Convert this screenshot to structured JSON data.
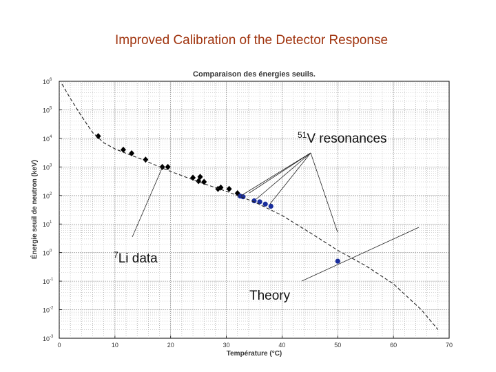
{
  "slide": {
    "title": "Improved Calibration of the Detector Response"
  },
  "chart_data": {
    "type": "scatter",
    "title": "Comparaison des énergies seuils.",
    "xlabel": "Température (°C)",
    "ylabel": "Énergie seuil de neutron (keV)",
    "xlim": [
      0,
      70
    ],
    "ylim_log10": [
      -3,
      6
    ],
    "y_scale": "log",
    "grid": true,
    "x_ticks": [
      0,
      10,
      20,
      30,
      40,
      50,
      60,
      70
    ],
    "y_ticks": [
      {
        "base": "10",
        "exp": "6"
      },
      {
        "base": "10",
        "exp": "5"
      },
      {
        "base": "10",
        "exp": "4"
      },
      {
        "base": "10",
        "exp": "3"
      },
      {
        "base": "10",
        "exp": "2"
      },
      {
        "base": "10",
        "exp": "1"
      },
      {
        "base": "10",
        "exp": "0"
      },
      {
        "base": "10",
        "exp": "-1"
      },
      {
        "base": "10",
        "exp": "-2"
      },
      {
        "base": "10",
        "exp": "-3"
      }
    ],
    "series": [
      {
        "color": "#000000",
        "marker": "diamond",
        "points": [
          [
            7,
            12000
          ],
          [
            11.5,
            4000
          ],
          [
            13,
            3000
          ],
          [
            15.5,
            1800
          ],
          [
            18.5,
            1000
          ],
          [
            19.5,
            1000
          ],
          [
            24,
            420
          ],
          [
            25,
            320
          ],
          [
            25.3,
            450
          ],
          [
            26,
            300
          ],
          [
            28.5,
            170
          ],
          [
            29,
            190
          ],
          [
            30.5,
            170
          ],
          [
            32,
            120
          ]
        ]
      },
      {
        "color": "#1a2e9c",
        "marker": "circle",
        "points": [
          [
            32.5,
            95
          ],
          [
            33,
            90
          ],
          [
            35,
            65
          ],
          [
            36,
            60
          ],
          [
            37,
            50
          ],
          [
            38,
            42
          ],
          [
            50,
            0.5
          ]
        ]
      },
      {
        "line_style": "dashed",
        "color": "#222222",
        "points": [
          [
            0.5,
            800000
          ],
          [
            2,
            250000
          ],
          [
            4,
            60000
          ],
          [
            6,
            16000
          ],
          [
            8,
            7000
          ],
          [
            10,
            4300
          ],
          [
            12,
            3000
          ],
          [
            15,
            1800
          ],
          [
            18,
            1000
          ],
          [
            20,
            700
          ],
          [
            25,
            300
          ],
          [
            30,
            140
          ],
          [
            35,
            60
          ],
          [
            40,
            20
          ],
          [
            45,
            5
          ],
          [
            50,
            1.2
          ],
          [
            55,
            0.35
          ],
          [
            60,
            0.08
          ],
          [
            65,
            0.01
          ],
          [
            68,
            0.002
          ]
        ]
      }
    ],
    "annotations": [
      {
        "text_pre": "51",
        "text_main": "V resonances"
      },
      {
        "text_pre": "7",
        "text_main": "Li data"
      },
      {
        "text_pre": "",
        "text_main": "Theory"
      }
    ]
  }
}
